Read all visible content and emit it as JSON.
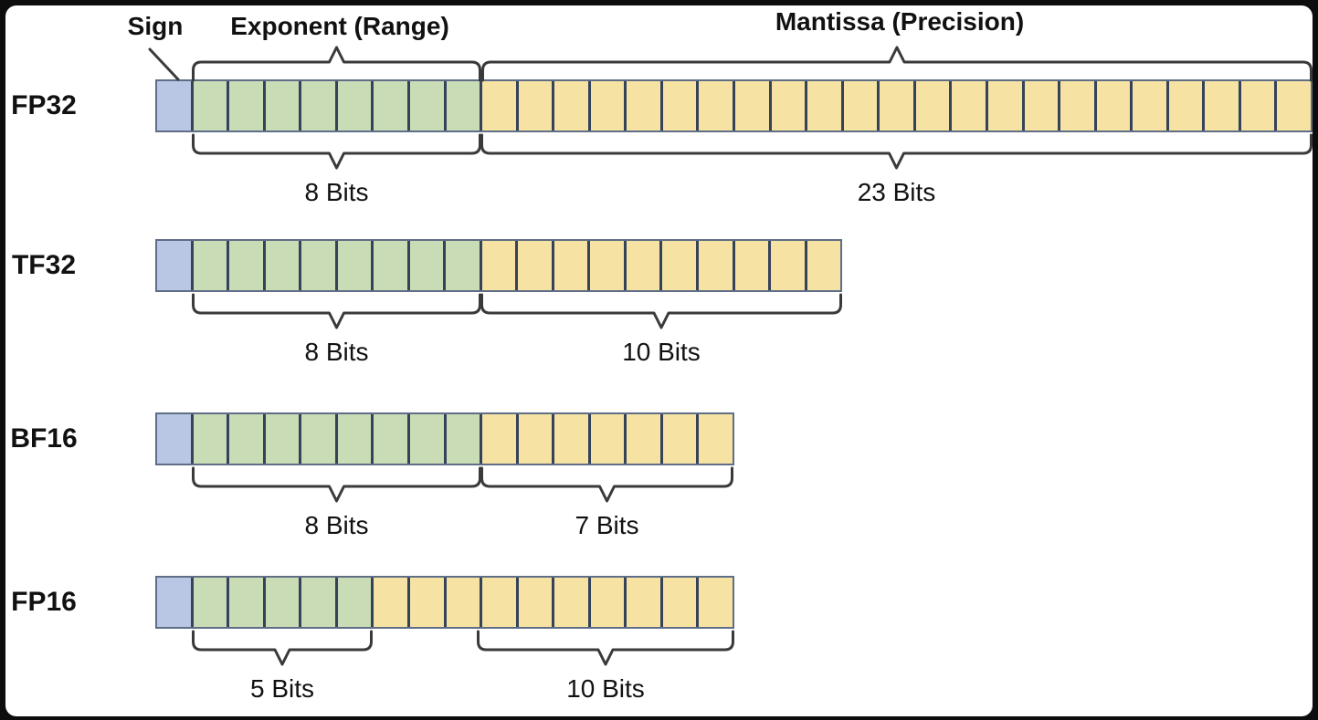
{
  "header": {
    "sign_label": "Sign",
    "exponent_label": "Exponent (Range)",
    "mantissa_label": "Mantissa (Precision)"
  },
  "colors": {
    "sign_fill": "#b9c7e4",
    "exponent_fill": "#cadcb6",
    "mantissa_fill": "#f6e3a3",
    "cell_border": "#35435a",
    "row_border": "#5f6e86",
    "brace_stroke": "#3a3a3a",
    "text": "#111111",
    "frame": "#0d0d0d",
    "canvas": "#ffffff"
  },
  "formats": [
    {
      "name": "FP32",
      "sign_bits": 1,
      "exponent_bits": 8,
      "mantissa_bits": 23,
      "exponent_bits_label": "8 Bits",
      "mantissa_bits_label": "23 Bits"
    },
    {
      "name": "TF32",
      "sign_bits": 1,
      "exponent_bits": 8,
      "mantissa_bits": 10,
      "exponent_bits_label": "8 Bits",
      "mantissa_bits_label": "10 Bits"
    },
    {
      "name": "BF16",
      "sign_bits": 1,
      "exponent_bits": 8,
      "mantissa_bits": 7,
      "exponent_bits_label": "8 Bits",
      "mantissa_bits_label": "7 Bits"
    },
    {
      "name": "FP16",
      "sign_bits": 1,
      "exponent_bits": 5,
      "mantissa_bits": 10,
      "exponent_bits_label": "5 Bits",
      "mantissa_bits_label": "10 Bits"
    }
  ]
}
